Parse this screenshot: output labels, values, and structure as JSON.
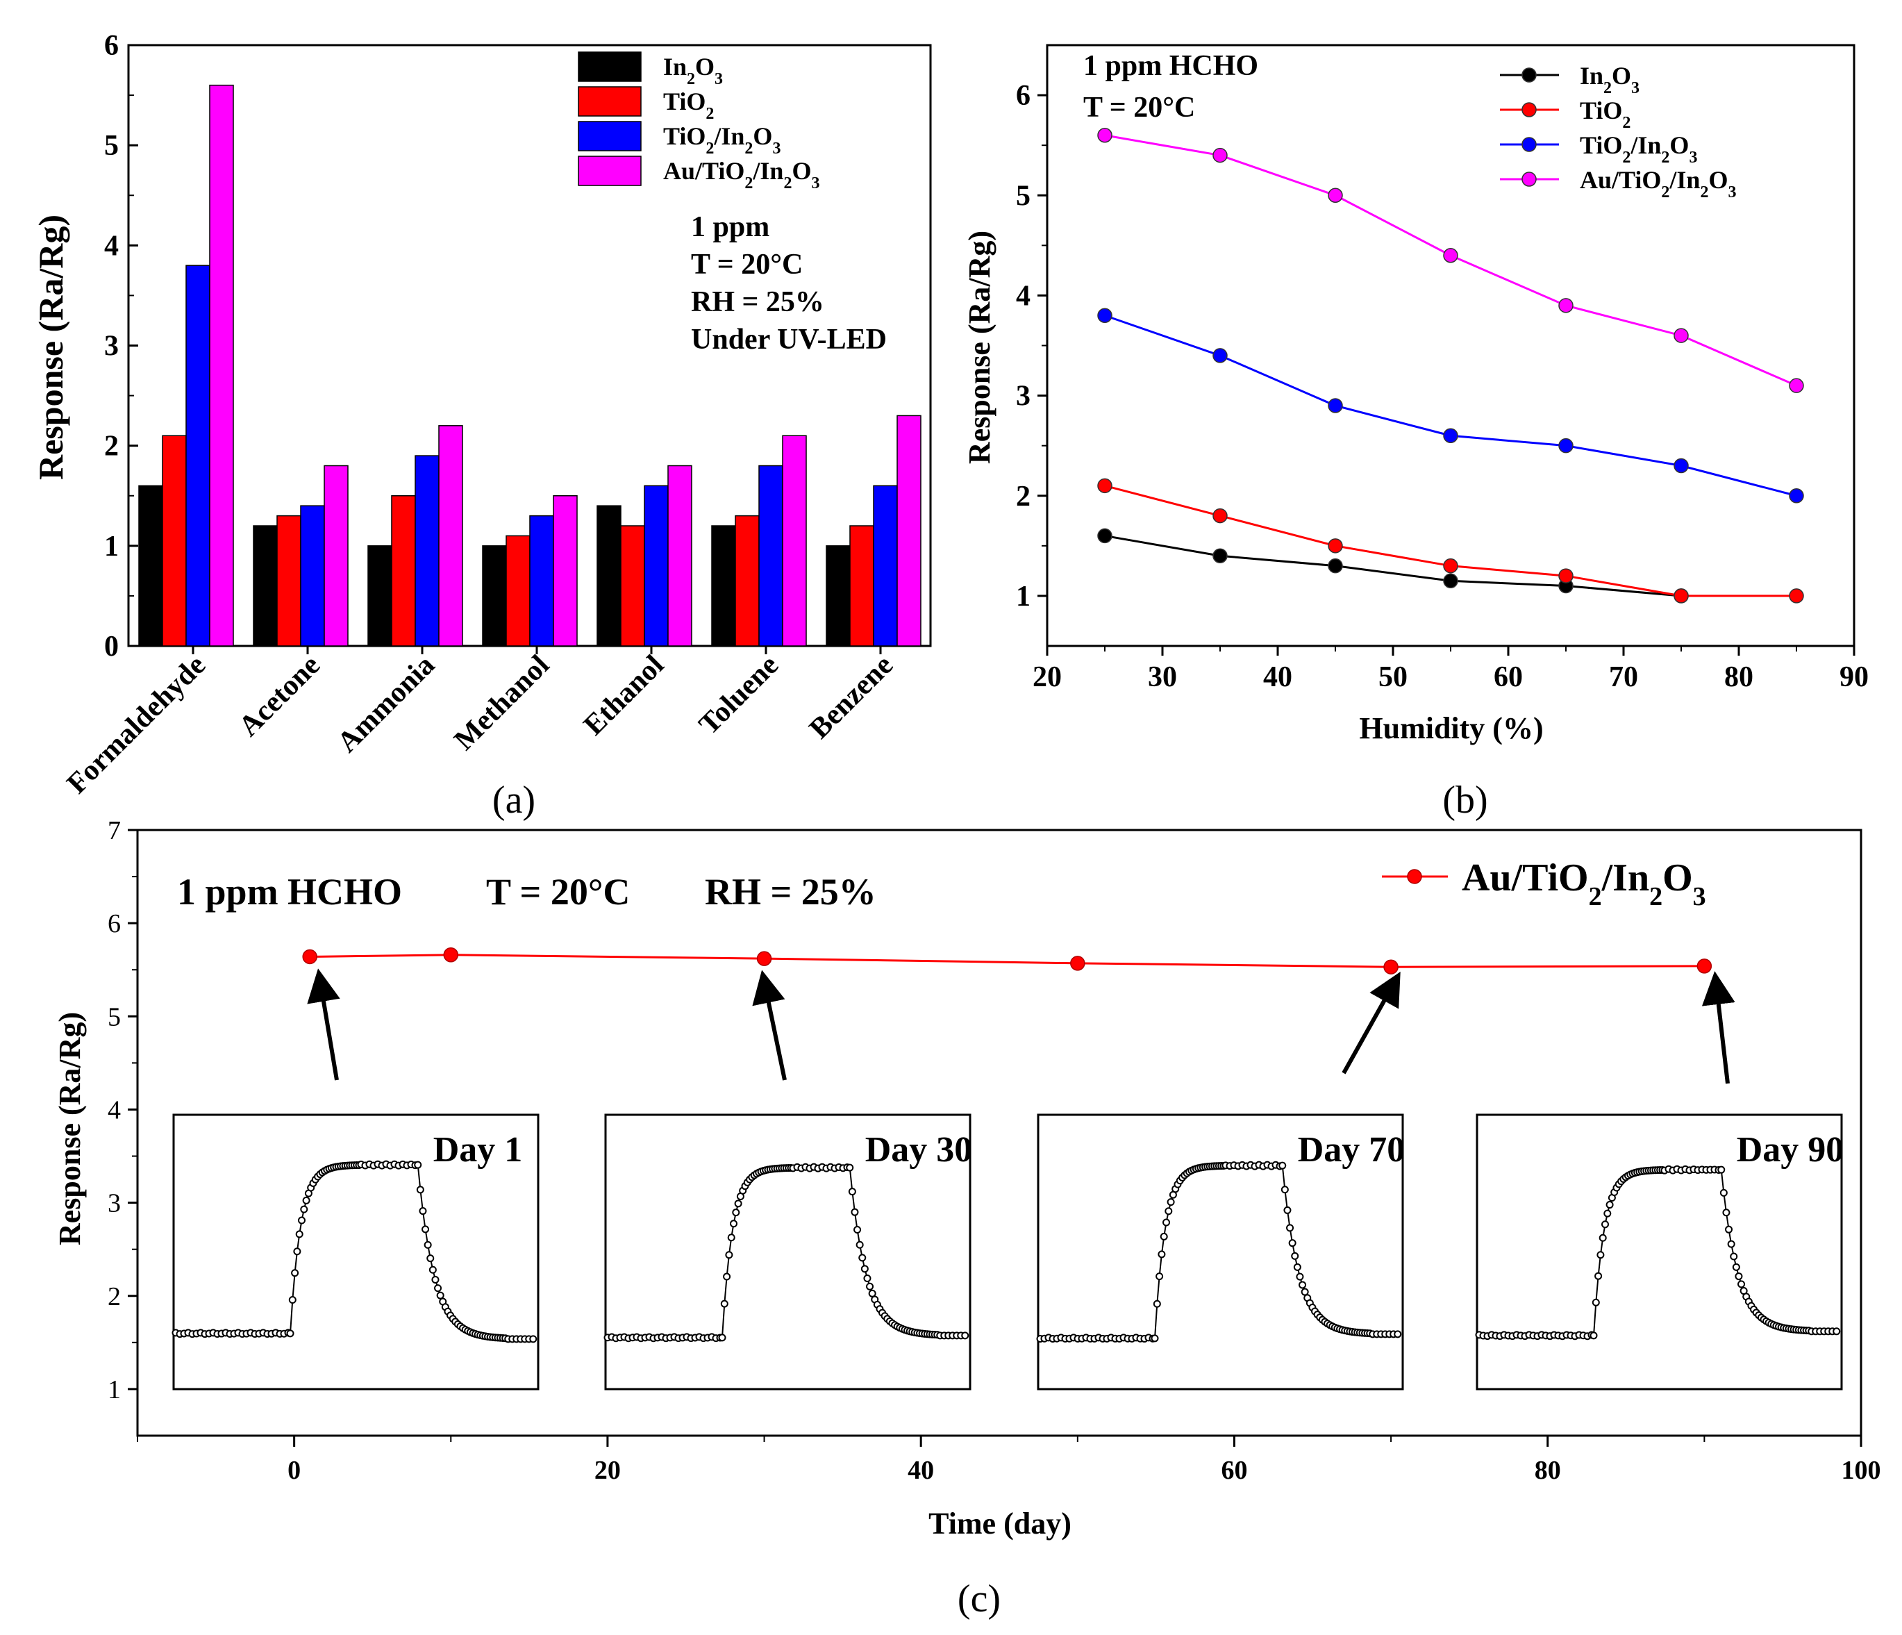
{
  "colors": {
    "In2O3": "#000000",
    "TiO2": "#ff0000",
    "TiO2/In2O3": "#0000ff",
    "Au/TiO2/In2O3": "#ff00ff",
    "axis": "#000000"
  },
  "chart_data": [
    {
      "id": "a",
      "type": "bar",
      "panel_label": "(a)",
      "ylabel": "Response (Ra/Rg)",
      "xlabel": "",
      "ylim": [
        0,
        6
      ],
      "yticks": [
        "0",
        "1",
        "2",
        "3",
        "4",
        "5",
        "6"
      ],
      "categories": [
        "Formaldehyde",
        "Acetone",
        "Ammonia",
        "Methanol",
        "Ethanol",
        "Toluene",
        "Benzene"
      ],
      "series": [
        {
          "name": "In2O3",
          "legend_base": "In",
          "legend_parts": [
            [
              "In",
              ""
            ],
            [
              "2",
              "sub"
            ],
            [
              "O",
              ""
            ],
            [
              "3",
              "sub"
            ]
          ],
          "color": "#000000",
          "values": [
            1.6,
            1.2,
            1.0,
            1.0,
            1.4,
            1.2,
            1.0
          ]
        },
        {
          "name": "TiO2",
          "legend_parts": [
            [
              "TiO",
              ""
            ],
            [
              "2",
              "sub"
            ]
          ],
          "color": "#ff0000",
          "values": [
            2.1,
            1.3,
            1.5,
            1.1,
            1.2,
            1.3,
            1.2
          ]
        },
        {
          "name": "TiO2/In2O3",
          "legend_parts": [
            [
              "TiO",
              ""
            ],
            [
              "2",
              "sub"
            ],
            [
              "/In",
              ""
            ],
            [
              "2",
              "sub"
            ],
            [
              "O",
              ""
            ],
            [
              "3",
              "sub"
            ]
          ],
          "color": "#0000ff",
          "values": [
            3.8,
            1.4,
            1.9,
            1.3,
            1.6,
            1.8,
            1.6
          ]
        },
        {
          "name": "Au/TiO2/In2O3",
          "legend_parts": [
            [
              "Au/TiO",
              ""
            ],
            [
              "2",
              "sub"
            ],
            [
              "/In",
              ""
            ],
            [
              "2",
              "sub"
            ],
            [
              "O",
              ""
            ],
            [
              "3",
              "sub"
            ]
          ],
          "color": "#ff00ff",
          "values": [
            5.6,
            1.8,
            2.2,
            1.5,
            1.8,
            2.1,
            2.3
          ]
        }
      ],
      "annotations": [
        "1 ppm",
        "T = 20°C",
        "RH = 25%",
        "Under UV-LED"
      ]
    },
    {
      "id": "b",
      "type": "line",
      "panel_label": "(b)",
      "xlabel": "Humidity (%)",
      "ylabel": "Response (Ra/Rg)",
      "xlim": [
        20,
        90
      ],
      "ylim": [
        0.5,
        6.5
      ],
      "xticks": [
        "20",
        "30",
        "40",
        "50",
        "60",
        "70",
        "80",
        "90"
      ],
      "yticks": [
        "1",
        "2",
        "3",
        "4",
        "5",
        "6"
      ],
      "x": [
        25,
        35,
        45,
        55,
        65,
        75,
        85
      ],
      "series": [
        {
          "name": "In2O3",
          "legend_parts": [
            [
              "In",
              ""
            ],
            [
              "2",
              "sub"
            ],
            [
              "O",
              ""
            ],
            [
              "3",
              "sub"
            ]
          ],
          "color": "#000000",
          "values": [
            1.6,
            1.4,
            1.3,
            1.15,
            1.1,
            1.0,
            null
          ]
        },
        {
          "name": "TiO2",
          "legend_parts": [
            [
              "TiO",
              ""
            ],
            [
              "2",
              "sub"
            ]
          ],
          "color": "#ff0000",
          "values": [
            2.1,
            1.8,
            1.5,
            1.3,
            1.2,
            1.0,
            1.0
          ]
        },
        {
          "name": "TiO2/In2O3",
          "legend_parts": [
            [
              "TiO",
              ""
            ],
            [
              "2",
              "sub"
            ],
            [
              "/In",
              ""
            ],
            [
              "2",
              "sub"
            ],
            [
              "O",
              ""
            ],
            [
              "3",
              "sub"
            ]
          ],
          "color": "#0000ff",
          "values": [
            3.8,
            3.4,
            2.9,
            2.6,
            2.5,
            2.3,
            2.0
          ]
        },
        {
          "name": "Au/TiO2/In2O3",
          "legend_parts": [
            [
              "Au/TiO",
              ""
            ],
            [
              "2",
              "sub"
            ],
            [
              "/In",
              ""
            ],
            [
              "2",
              "sub"
            ],
            [
              "O",
              ""
            ],
            [
              "3",
              "sub"
            ]
          ],
          "color": "#ff00ff",
          "values": [
            5.6,
            5.4,
            5.0,
            4.4,
            3.9,
            3.6,
            3.1
          ]
        }
      ],
      "annotations": [
        "1 ppm HCHO",
        "T = 20°C"
      ]
    },
    {
      "id": "c",
      "type": "line",
      "panel_label": "(c)",
      "xlabel": "Time (day)",
      "ylabel": "Response (Ra/Rg)",
      "xlim": [
        -10,
        100
      ],
      "ylim": [
        0.5,
        7
      ],
      "xticks": [
        "0",
        "20",
        "40",
        "60",
        "80",
        "100"
      ],
      "yticks": [
        "1",
        "2",
        "3",
        "4",
        "5",
        "6",
        "7"
      ],
      "x": [
        1,
        10,
        30,
        50,
        70,
        90
      ],
      "series": [
        {
          "name": "Au/TiO2/In2O3",
          "legend_parts": [
            [
              "Au/TiO",
              ""
            ],
            [
              "2",
              "sub"
            ],
            [
              "/In",
              ""
            ],
            [
              "2",
              "sub"
            ],
            [
              "O",
              ""
            ],
            [
              "3",
              "sub"
            ]
          ],
          "color": "#ff0000",
          "values": [
            5.64,
            5.66,
            5.62,
            5.57,
            5.53,
            5.54
          ]
        }
      ],
      "annotations": [
        "1 ppm HCHO",
        "T = 20°C",
        "RH = 25%"
      ],
      "insets": [
        {
          "label": "Day 1",
          "baseline": 1.28,
          "plateau": 3.7,
          "recovery_floor": 1.2
        },
        {
          "label": "Day 30",
          "baseline": 1.22,
          "plateau": 3.66,
          "recovery_floor": 1.25
        },
        {
          "label": "Day 70",
          "baseline": 1.21,
          "plateau": 3.69,
          "recovery_floor": 1.27
        },
        {
          "label": "Day 90",
          "baseline": 1.25,
          "plateau": 3.63,
          "recovery_floor": 1.31
        }
      ]
    }
  ]
}
